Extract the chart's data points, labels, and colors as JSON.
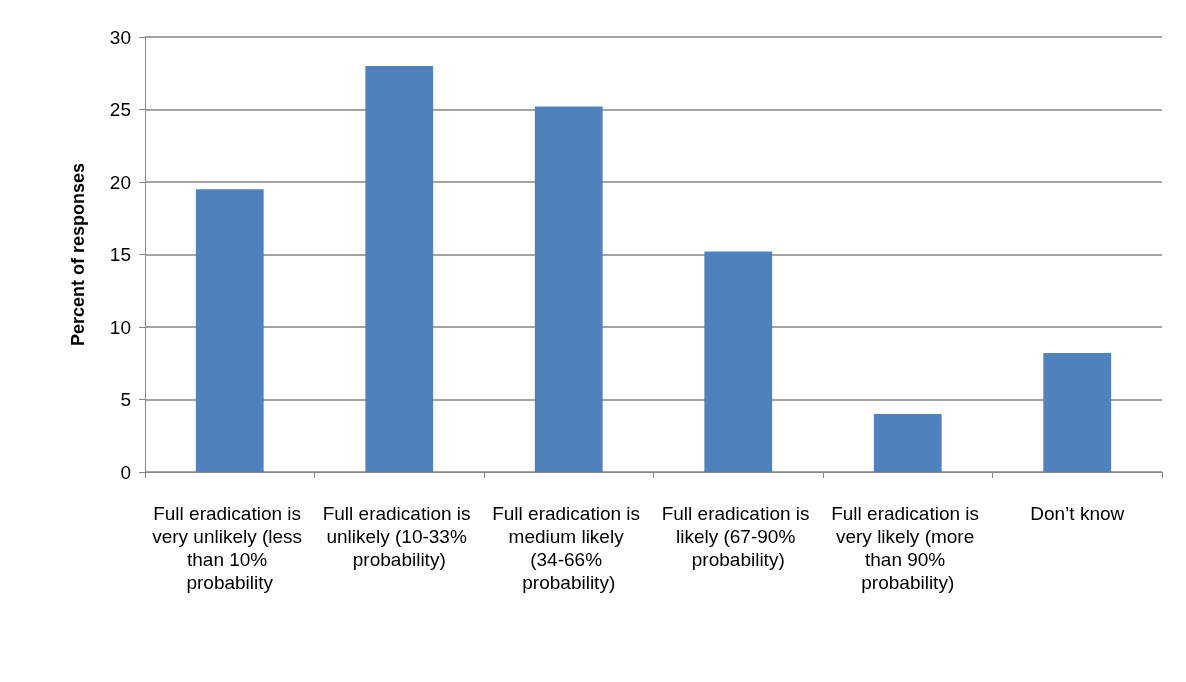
{
  "chart_data": {
    "type": "bar",
    "ylabel": "Percent of responses",
    "categories": [
      "Full eradication is very unlikely (less than 10% probability",
      "Full eradication is unlikely (10-33% probability)",
      "Full eradication is medium likely (34-66% probability)",
      "Full eradication is likely (67-90% probability)",
      "Full eradication is very likely (more than 90% probability)",
      "Don’t know"
    ],
    "values": [
      19.5,
      28.0,
      25.2,
      15.2,
      4.0,
      8.2
    ],
    "color": "#4f81bd",
    "ylim": [
      0,
      30
    ],
    "yticks": [
      0,
      5,
      10,
      15,
      20,
      25,
      30
    ],
    "grid": "y"
  }
}
